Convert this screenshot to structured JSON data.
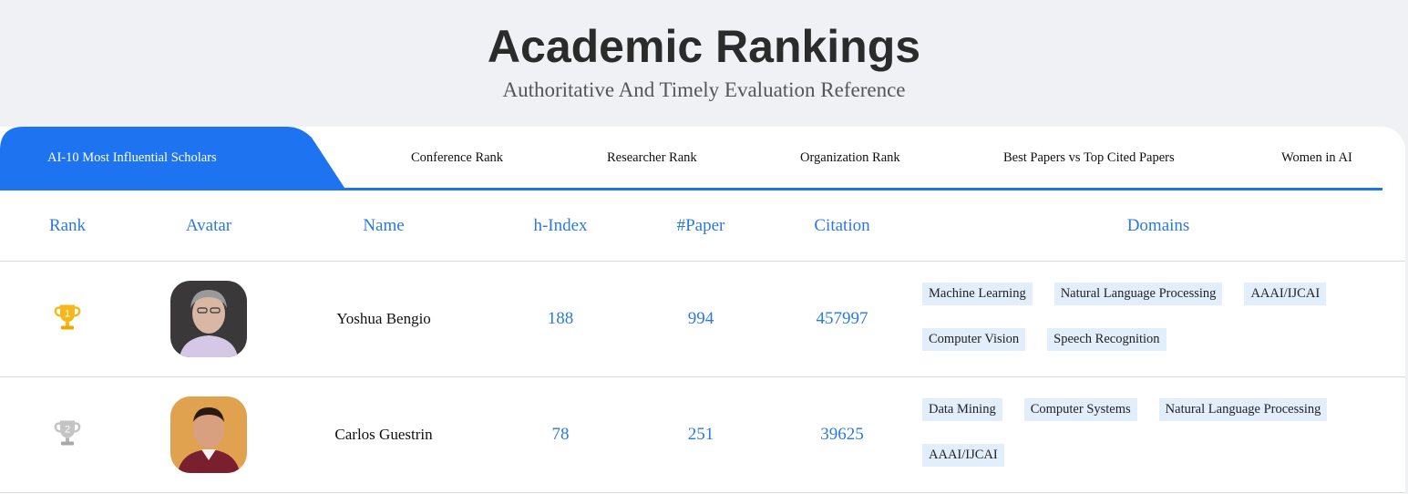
{
  "header": {
    "title": "Academic Rankings",
    "subtitle": "Authoritative And Timely Evaluation Reference"
  },
  "tabs": [
    {
      "label": "AI-10 Most Influential Scholars",
      "active": true
    },
    {
      "label": "Conference Rank"
    },
    {
      "label": "Researcher Rank"
    },
    {
      "label": "Organization Rank"
    },
    {
      "label": "Best Papers vs Top Cited Papers"
    },
    {
      "label": "Women in AI"
    }
  ],
  "columns": [
    "Rank",
    "Avatar",
    "Name",
    "h-Index",
    "#Paper",
    "Citation",
    "Domains"
  ],
  "rows": [
    {
      "rank": "1",
      "trophy": "gold-trophy-icon",
      "name": "Yoshua Bengio",
      "h_index": "188",
      "papers": "994",
      "citation": "457997",
      "domains": [
        [
          "Machine Learning",
          "Natural Language Processing",
          "AAAI/IJCAI"
        ],
        [
          "Computer Vision",
          "Speech Recognition"
        ]
      ]
    },
    {
      "rank": "2",
      "trophy": "silver-trophy-icon",
      "name": "Carlos Guestrin",
      "h_index": "78",
      "papers": "251",
      "citation": "39625",
      "domains": [
        [
          "Data Mining",
          "Computer Systems",
          "Natural Language Processing"
        ],
        [
          "AAAI/IJCAI"
        ]
      ]
    }
  ],
  "colors": {
    "accent": "#1e74f0",
    "header_text": "#2a7ae2",
    "chip_bg": "#e3eefc",
    "page_bg": "#f0f1f5",
    "gold": "#f5b81c",
    "silver": "#b5b5b5"
  }
}
